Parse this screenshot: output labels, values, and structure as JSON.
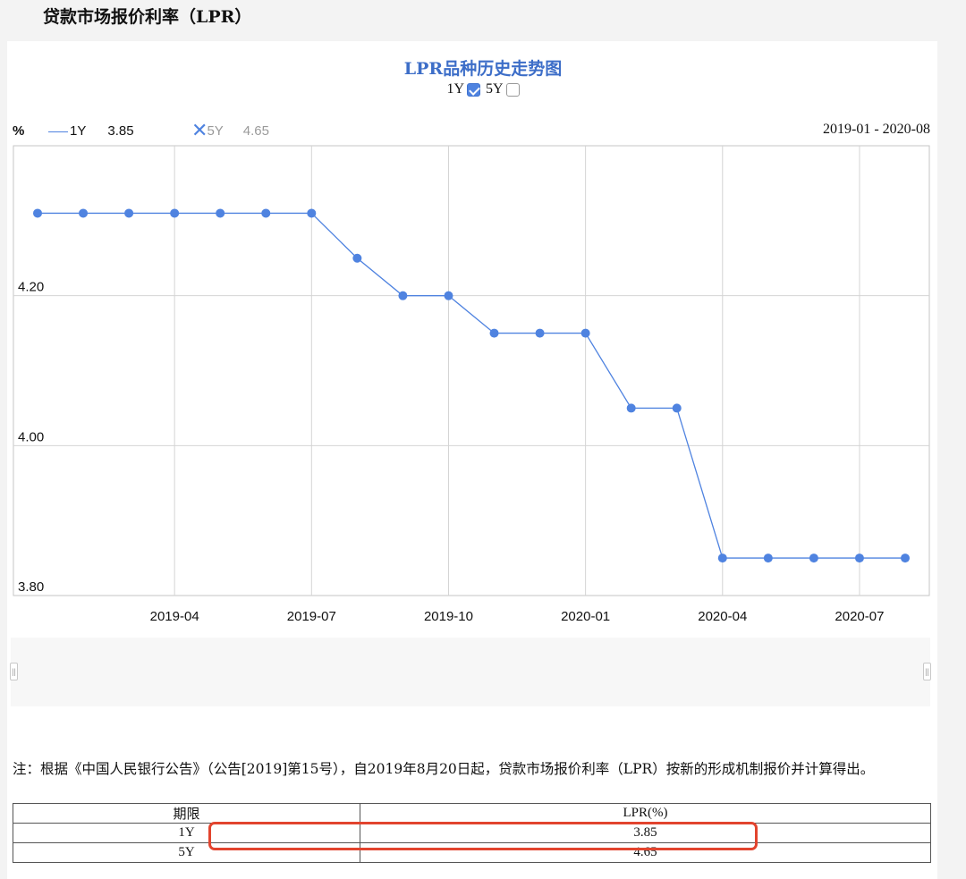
{
  "page": {
    "title": "贷款市场报价利率（LPR）"
  },
  "chart": {
    "title": "LPR品种历史走势图",
    "toggles": [
      {
        "label": "1Y",
        "checked": true
      },
      {
        "label": "5Y",
        "checked": false
      }
    ],
    "unit": "%",
    "legend": [
      {
        "name": "1Y",
        "value": "3.85",
        "color": "#4f83e0",
        "active": true
      },
      {
        "name": "5Y",
        "value": "4.65",
        "color": "#9a9a9a",
        "active": false
      }
    ],
    "date_range": "2019-01 - 2020-08"
  },
  "chart_data": {
    "type": "line",
    "series": [
      {
        "name": "1Y",
        "color": "#4f83e0",
        "x": [
          "2019-01",
          "2019-02",
          "2019-03",
          "2019-04",
          "2019-05",
          "2019-06",
          "2019-07",
          "2019-08",
          "2019-09",
          "2019-10",
          "2019-11",
          "2019-12",
          "2020-01",
          "2020-02",
          "2020-03",
          "2020-04",
          "2020-05",
          "2020-06",
          "2020-07",
          "2020-08"
        ],
        "values": [
          4.31,
          4.31,
          4.31,
          4.31,
          4.31,
          4.31,
          4.31,
          4.25,
          4.2,
          4.2,
          4.15,
          4.15,
          4.15,
          4.05,
          4.05,
          3.85,
          3.85,
          3.85,
          3.85,
          3.85
        ]
      }
    ],
    "x_ticks": [
      "2019-04",
      "2019-07",
      "2019-10",
      "2020-01",
      "2020-04",
      "2020-07"
    ],
    "y_ticks": [
      "4.20",
      "4.00",
      "3.80"
    ],
    "ylim": [
      3.8,
      4.4
    ],
    "grid": true,
    "legend_position": "top-left"
  },
  "note": "注：根据《中国人民银行公告》（公告[2019]第15号），自2019年8月20日起，贷款市场报价利率（LPR）按新的形成机制报价并计算得出。",
  "table": {
    "headers": [
      "期限",
      "LPR(%)"
    ],
    "rows": [
      [
        "1Y",
        "3.85"
      ],
      [
        "5Y",
        "4.65"
      ]
    ]
  },
  "highlight": {
    "color": "#e2442e"
  }
}
